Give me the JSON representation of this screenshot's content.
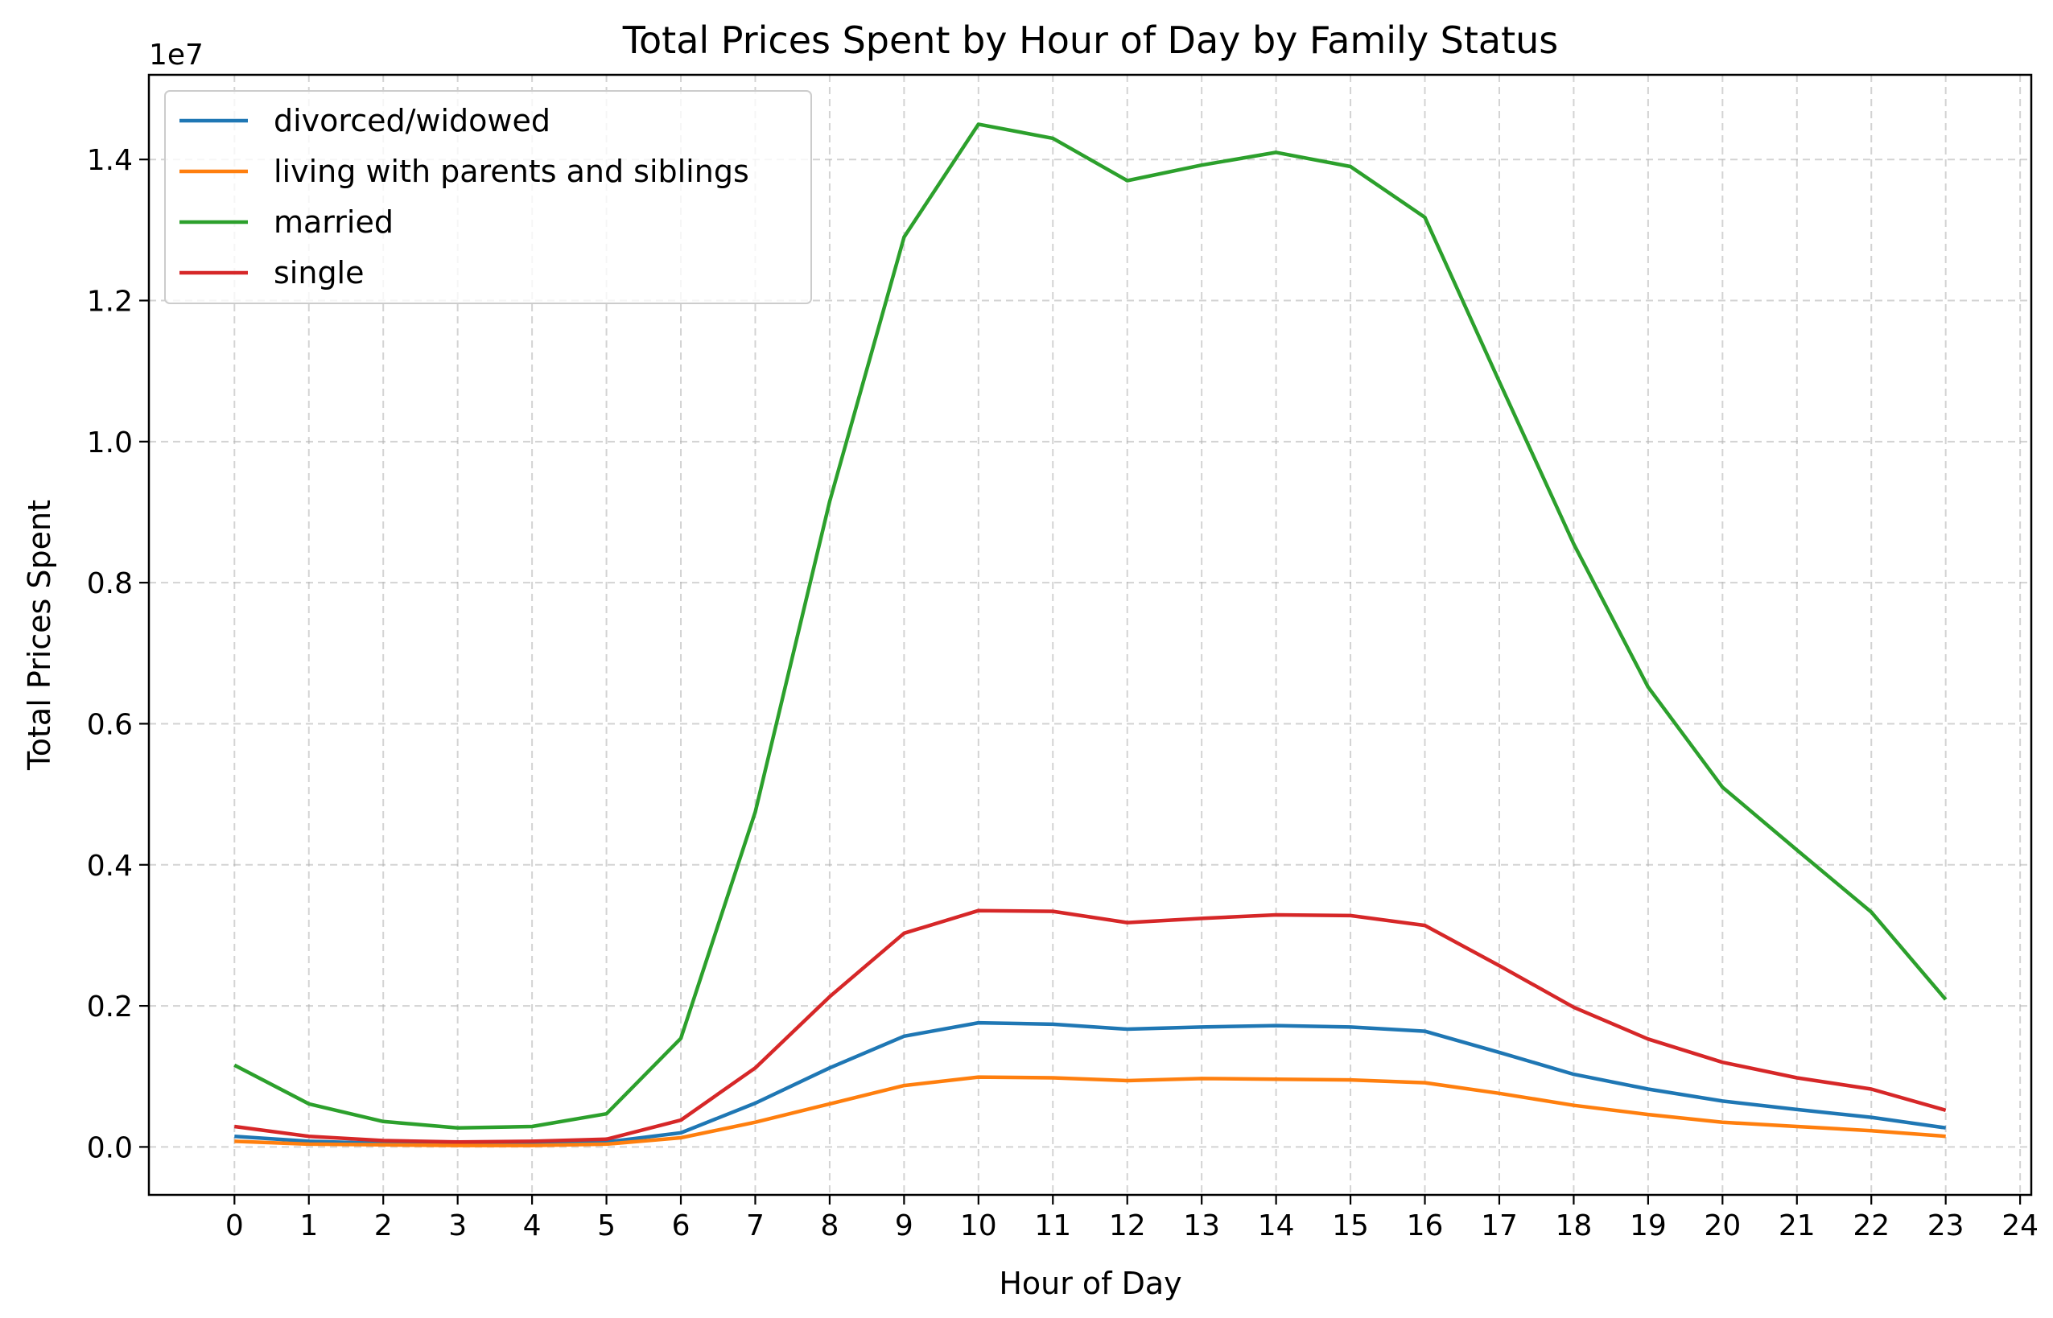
{
  "chart_data": {
    "type": "line",
    "title": "Total Prices Spent by Hour of Day by Family Status",
    "xlabel": "Hour of Day",
    "ylabel": "Total Prices Spent",
    "y_offset_label": "1e7",
    "y_scale": 10000000,
    "xlim": [
      -1.15,
      24.15
    ],
    "ylim": [
      -0.068,
      1.52
    ],
    "x_ticks": [
      0,
      1,
      2,
      3,
      4,
      5,
      6,
      7,
      8,
      9,
      10,
      11,
      12,
      13,
      14,
      15,
      16,
      17,
      18,
      19,
      20,
      21,
      22,
      23,
      24
    ],
    "x_tick_labels": [
      "0",
      "1",
      "2",
      "3",
      "4",
      "5",
      "6",
      "7",
      "8",
      "9",
      "10",
      "11",
      "12",
      "13",
      "14",
      "15",
      "16",
      "17",
      "18",
      "19",
      "20",
      "21",
      "22",
      "23",
      "24"
    ],
    "y_ticks": [
      0.0,
      0.2,
      0.4,
      0.6,
      0.8,
      1.0,
      1.2,
      1.4
    ],
    "y_tick_labels": [
      "0.0",
      "0.2",
      "0.4",
      "0.6",
      "0.8",
      "1.0",
      "1.2",
      "1.4"
    ],
    "grid": true,
    "legend_position": "top-left",
    "x": [
      0,
      1,
      2,
      3,
      4,
      5,
      6,
      7,
      8,
      9,
      10,
      11,
      12,
      13,
      14,
      15,
      16,
      17,
      18,
      19,
      20,
      21,
      22,
      23
    ],
    "series": [
      {
        "name": "divorced/widowed",
        "color": "#1f77b4",
        "values": [
          0.015,
          0.008,
          0.005,
          0.004,
          0.005,
          0.007,
          0.02,
          0.062,
          0.112,
          0.157,
          0.176,
          0.174,
          0.167,
          0.17,
          0.172,
          0.17,
          0.164,
          0.134,
          0.103,
          0.082,
          0.065,
          0.053,
          0.042,
          0.027
        ]
      },
      {
        "name": "living with parents and siblings",
        "color": "#ff7f0e",
        "values": [
          0.008,
          0.004,
          0.003,
          0.002,
          0.002,
          0.004,
          0.013,
          0.035,
          0.061,
          0.087,
          0.099,
          0.098,
          0.094,
          0.097,
          0.096,
          0.095,
          0.091,
          0.076,
          0.059,
          0.046,
          0.035,
          0.029,
          0.023,
          0.015
        ]
      },
      {
        "name": "married",
        "color": "#2ca02c",
        "values": [
          0.116,
          0.061,
          0.036,
          0.027,
          0.029,
          0.047,
          0.154,
          0.475,
          0.915,
          1.29,
          1.45,
          1.43,
          1.37,
          1.392,
          1.41,
          1.39,
          1.318,
          1.085,
          0.855,
          0.652,
          0.51,
          0.421,
          0.333,
          0.209
        ]
      },
      {
        "name": "single",
        "color": "#d62728",
        "values": [
          0.029,
          0.015,
          0.009,
          0.007,
          0.008,
          0.011,
          0.038,
          0.112,
          0.213,
          0.303,
          0.335,
          0.334,
          0.318,
          0.324,
          0.329,
          0.328,
          0.314,
          0.257,
          0.198,
          0.153,
          0.12,
          0.098,
          0.082,
          0.052
        ]
      }
    ]
  }
}
